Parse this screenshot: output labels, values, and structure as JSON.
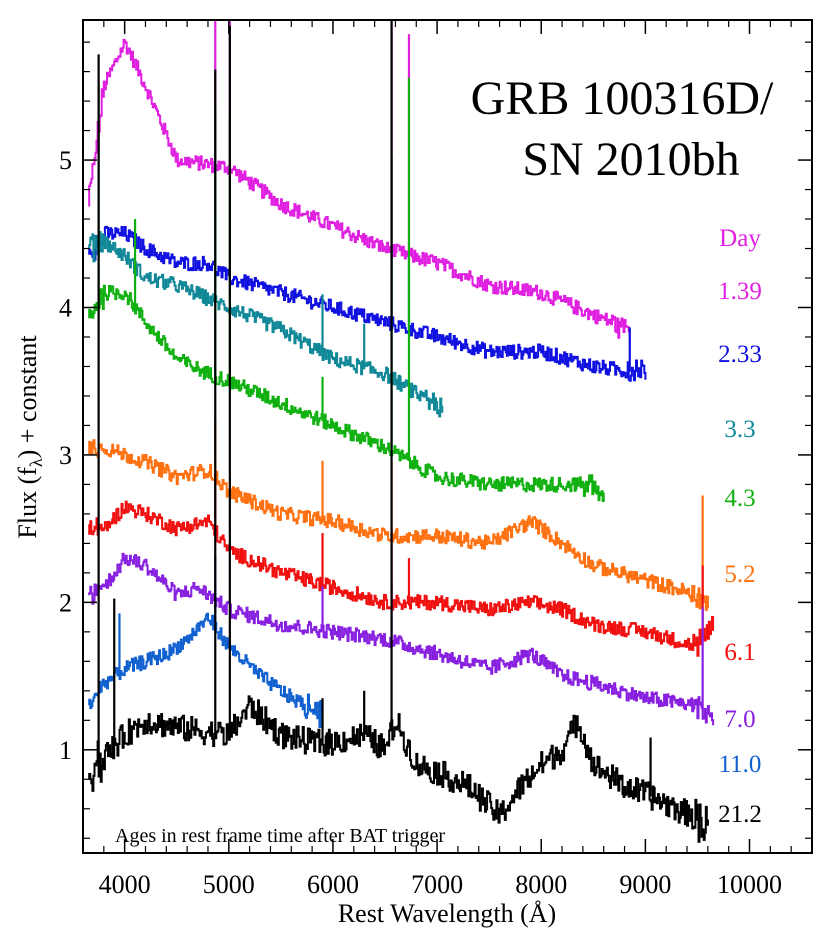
{
  "chart_data": {
    "type": "line",
    "title_lines": [
      "GRB 100316D/",
      "SN 2010bh"
    ],
    "xlabel": "Rest Wavelength (Å)",
    "ylabel": "Flux (f",
    "ylabel_sub": "λ",
    "ylabel_suffix": ") + constant",
    "xlim": [
      3600,
      10600
    ],
    "ylim": [
      0.3,
      5.95
    ],
    "xticks": [
      4000,
      5000,
      6000,
      7000,
      8000,
      9000,
      10000
    ],
    "yticks": [
      1,
      2,
      3,
      4,
      5
    ],
    "legend_header": "Day",
    "legend_header_color": "#e020e0",
    "note": "Ages in rest frame time after BAT trigger",
    "series": [
      {
        "name": "1.39",
        "color": "#e020e0",
        "x_range": [
          3650,
          8850
        ],
        "points": [
          [
            3650,
            4.7
          ],
          [
            3800,
            5.5
          ],
          [
            4000,
            5.8
          ],
          [
            4200,
            5.5
          ],
          [
            4500,
            5.0
          ],
          [
            5000,
            4.95
          ],
          [
            5500,
            4.7
          ],
          [
            6000,
            4.55
          ],
          [
            6500,
            4.4
          ],
          [
            7000,
            4.3
          ],
          [
            7500,
            4.15
          ],
          [
            8000,
            4.1
          ],
          [
            8500,
            3.95
          ],
          [
            8850,
            3.85
          ]
        ],
        "spikes": [
          [
            4870,
            2.5
          ],
          [
            5010,
            1.3
          ],
          [
            6563,
            1.6
          ],
          [
            6730,
            1.5
          ]
        ]
      },
      {
        "name": "2.33",
        "color": "#1010e0",
        "x_range": [
          3650,
          9000
        ],
        "points": [
          [
            3650,
            4.35
          ],
          [
            3800,
            4.5
          ],
          [
            4000,
            4.5
          ],
          [
            4200,
            4.4
          ],
          [
            4500,
            4.3
          ],
          [
            4800,
            4.3
          ],
          [
            5000,
            4.2
          ],
          [
            5500,
            4.1
          ],
          [
            6000,
            4.0
          ],
          [
            6500,
            3.9
          ],
          [
            7000,
            3.8
          ],
          [
            7500,
            3.7
          ],
          [
            8000,
            3.7
          ],
          [
            8500,
            3.6
          ],
          [
            9000,
            3.55
          ]
        ],
        "spikes": [
          [
            4870,
            0.8
          ],
          [
            6563,
            0.5
          ],
          [
            6730,
            0.5
          ],
          [
            8850,
            0.3
          ]
        ]
      },
      {
        "name": "3.3",
        "color": "#108898",
        "x_range": [
          3650,
          7050
        ],
        "points": [
          [
            3650,
            4.4
          ],
          [
            3800,
            4.45
          ],
          [
            4000,
            4.35
          ],
          [
            4200,
            4.2
          ],
          [
            4500,
            4.15
          ],
          [
            5000,
            4.0
          ],
          [
            5500,
            3.85
          ],
          [
            6000,
            3.65
          ],
          [
            6500,
            3.55
          ],
          [
            7050,
            3.3
          ]
        ],
        "spikes": [
          [
            4870,
            0.6
          ],
          [
            5900,
            0.4
          ],
          [
            6300,
            0.3
          ]
        ]
      },
      {
        "name": "4.3",
        "color": "#10b010",
        "x_range": [
          3650,
          8600
        ],
        "points": [
          [
            3650,
            3.9
          ],
          [
            3800,
            4.1
          ],
          [
            4000,
            4.1
          ],
          [
            4200,
            3.9
          ],
          [
            4500,
            3.65
          ],
          [
            4800,
            3.55
          ],
          [
            5000,
            3.5
          ],
          [
            5500,
            3.35
          ],
          [
            6000,
            3.2
          ],
          [
            6500,
            3.05
          ],
          [
            7000,
            2.85
          ],
          [
            7500,
            2.8
          ],
          [
            8000,
            2.8
          ],
          [
            8500,
            2.8
          ],
          [
            8600,
            2.7
          ]
        ],
        "spikes": [
          [
            3750,
            1.5
          ],
          [
            4100,
            0.6
          ],
          [
            4870,
            1.8
          ],
          [
            5010,
            1.8
          ],
          [
            6563,
            2.0
          ],
          [
            6730,
            2.6
          ],
          [
            5900,
            0.3
          ]
        ]
      },
      {
        "name": "5.2",
        "color": "#ff7010",
        "x_range": [
          3650,
          9600
        ],
        "points": [
          [
            3650,
            3.05
          ],
          [
            3800,
            3.05
          ],
          [
            4000,
            3.0
          ],
          [
            4200,
            2.95
          ],
          [
            4500,
            2.85
          ],
          [
            4800,
            2.9
          ],
          [
            5000,
            2.75
          ],
          [
            5500,
            2.6
          ],
          [
            6000,
            2.55
          ],
          [
            6500,
            2.45
          ],
          [
            7000,
            2.45
          ],
          [
            7500,
            2.4
          ],
          [
            7900,
            2.55
          ],
          [
            8200,
            2.4
          ],
          [
            8500,
            2.25
          ],
          [
            9000,
            2.15
          ],
          [
            9500,
            2.05
          ],
          [
            9600,
            2.0
          ]
        ],
        "spikes": [
          [
            4870,
            0.4
          ],
          [
            5900,
            0.4
          ],
          [
            6563,
            0.5
          ],
          [
            9550,
            0.7
          ]
        ]
      },
      {
        "name": "6.1",
        "color": "#f01010",
        "x_range": [
          3650,
          9650
        ],
        "points": [
          [
            3650,
            2.5
          ],
          [
            3800,
            2.5
          ],
          [
            4000,
            2.65
          ],
          [
            4200,
            2.6
          ],
          [
            4500,
            2.5
          ],
          [
            4800,
            2.55
          ],
          [
            5000,
            2.35
          ],
          [
            5500,
            2.2
          ],
          [
            6000,
            2.1
          ],
          [
            6500,
            2.0
          ],
          [
            7000,
            2.0
          ],
          [
            7500,
            1.95
          ],
          [
            7900,
            2.0
          ],
          [
            8200,
            1.95
          ],
          [
            8500,
            1.85
          ],
          [
            9000,
            1.8
          ],
          [
            9500,
            1.7
          ],
          [
            9650,
            1.85
          ]
        ],
        "spikes": [
          [
            4870,
            0.4
          ],
          [
            5900,
            0.35
          ],
          [
            6563,
            0.5
          ],
          [
            6730,
            0.3
          ],
          [
            9550,
            0.5
          ]
        ]
      },
      {
        "name": "7.0",
        "color": "#8820e0",
        "x_range": [
          3650,
          9650
        ],
        "points": [
          [
            3650,
            2.05
          ],
          [
            3800,
            2.1
          ],
          [
            4000,
            2.3
          ],
          [
            4200,
            2.25
          ],
          [
            4500,
            2.05
          ],
          [
            4700,
            2.1
          ],
          [
            5000,
            1.95
          ],
          [
            5500,
            1.85
          ],
          [
            6000,
            1.8
          ],
          [
            6500,
            1.75
          ],
          [
            7000,
            1.65
          ],
          [
            7500,
            1.55
          ],
          [
            7900,
            1.65
          ],
          [
            8200,
            1.5
          ],
          [
            8500,
            1.45
          ],
          [
            9000,
            1.35
          ],
          [
            9500,
            1.3
          ],
          [
            9650,
            1.2
          ]
        ],
        "spikes": [
          [
            4870,
            0.3
          ],
          [
            5900,
            0.3
          ],
          [
            6563,
            0.4
          ],
          [
            9550,
            0.7
          ]
        ]
      },
      {
        "name": "11.0",
        "color": "#1060d0",
        "x_range": [
          3650,
          5900
        ],
        "points": [
          [
            3650,
            1.3
          ],
          [
            3800,
            1.45
          ],
          [
            4000,
            1.55
          ],
          [
            4200,
            1.6
          ],
          [
            4400,
            1.65
          ],
          [
            4600,
            1.75
          ],
          [
            4800,
            1.9
          ],
          [
            5000,
            1.7
          ],
          [
            5300,
            1.5
          ],
          [
            5600,
            1.35
          ],
          [
            5900,
            1.25
          ]
        ],
        "spikes": [
          [
            4870,
            0.3
          ],
          [
            3950,
            0.4
          ]
        ]
      },
      {
        "name": "21.2",
        "color": "#000000",
        "x_range": [
          3650,
          9600
        ],
        "points": [
          [
            3650,
            0.85
          ],
          [
            3800,
            0.95
          ],
          [
            4000,
            1.1
          ],
          [
            4200,
            1.2
          ],
          [
            4500,
            1.15
          ],
          [
            5000,
            1.1
          ],
          [
            5200,
            1.3
          ],
          [
            5500,
            1.1
          ],
          [
            5800,
            1.05
          ],
          [
            6000,
            1.05
          ],
          [
            6300,
            1.1
          ],
          [
            6500,
            1.0
          ],
          [
            6600,
            1.2
          ],
          [
            6800,
            0.9
          ],
          [
            7000,
            0.85
          ],
          [
            7300,
            0.75
          ],
          [
            7600,
            0.55
          ],
          [
            7800,
            0.75
          ],
          [
            8000,
            0.9
          ],
          [
            8200,
            1.0
          ],
          [
            8350,
            1.2
          ],
          [
            8500,
            0.9
          ],
          [
            8800,
            0.75
          ],
          [
            9000,
            0.7
          ],
          [
            9300,
            0.6
          ],
          [
            9600,
            0.5
          ]
        ],
        "spikes": [
          [
            3750,
            4.8
          ],
          [
            3900,
            1.0
          ],
          [
            4870,
            4.5
          ],
          [
            5010,
            4.8
          ],
          [
            6563,
            5.0
          ],
          [
            5900,
            0.3
          ],
          [
            6300,
            0.3
          ],
          [
            9050,
            0.4
          ]
        ]
      }
    ]
  }
}
